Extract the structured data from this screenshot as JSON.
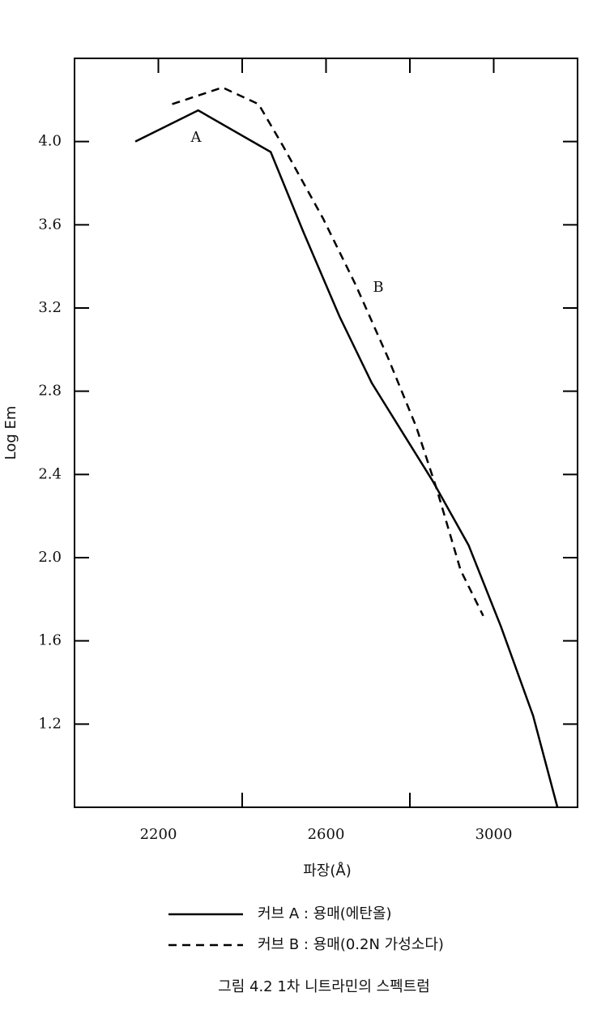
{
  "chart_data": {
    "type": "line",
    "xlabel": "파장(Å)",
    "ylabel": "Log Em",
    "caption": "그림 4.2  1차 니트라민의 스펙트럼",
    "xlim": [
      2000,
      3200
    ],
    "xticks": [
      2200,
      2600,
      3000
    ],
    "xminor_ticks": [
      2400,
      2800
    ],
    "ylim": [
      0.8,
      4.4
    ],
    "yticks": [
      1.2,
      1.6,
      {
        "value": 2.0,
        "label": "2.0"
      },
      2.4,
      2.8,
      3.2,
      3.6,
      {
        "value": 4.0,
        "label": "4.0"
      }
    ],
    "annotations": [
      "A",
      "B"
    ],
    "series": [
      {
        "name": "커브 A : 용매(에탄올)",
        "color": "#000000",
        "dash": "solid",
        "x": [
          2145,
          2295,
          2468,
          2545,
          2632,
          2709,
          2786,
          2854,
          2940,
          3017,
          3094,
          3152
        ],
        "values": [
          4.0,
          4.15,
          3.95,
          3.57,
          3.16,
          2.84,
          2.59,
          2.37,
          2.06,
          1.67,
          1.24,
          0.8
        ]
      },
      {
        "name": "커브 B : 용매(0.2N 가성소다)",
        "color": "#000000",
        "dash": "dashed",
        "x": [
          2233,
          2353,
          2439,
          2497,
          2593,
          2671,
          2748,
          2815,
          2864,
          2921,
          2975
        ],
        "values": [
          4.18,
          4.26,
          4.18,
          3.98,
          3.63,
          3.31,
          2.96,
          2.63,
          2.33,
          1.94,
          1.72
        ]
      }
    ]
  }
}
